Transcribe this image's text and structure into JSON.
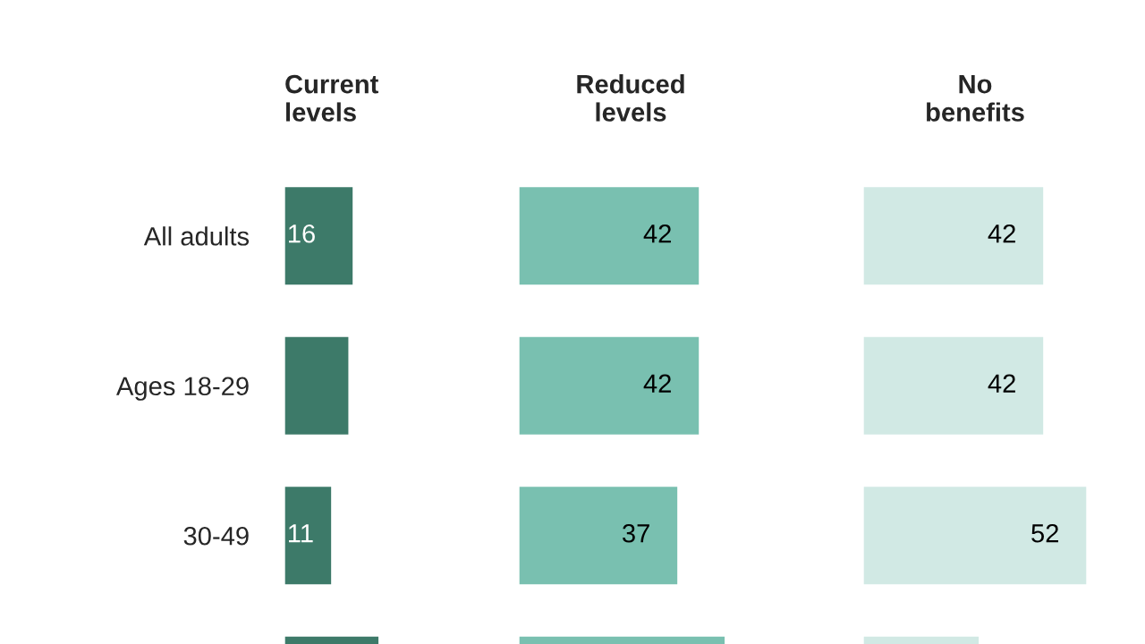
{
  "chart_data": [
    {
      "type": "bar",
      "orientation": "horizontal",
      "title": "Current\nlevels",
      "categories": [
        "All adults",
        "Ages 18-29",
        "30-49",
        null
      ],
      "tick_labels": "y",
      "color": "#3d7a69",
      "values": [
        16,
        15,
        11,
        22
      ],
      "value_labels": [
        "16",
        null,
        "11",
        null
      ]
    },
    {
      "type": "bar",
      "orientation": "horizontal",
      "title": "Reduced\nlevels",
      "tick_labels": false,
      "color": "#79c0b0",
      "values": [
        42,
        42,
        37,
        48
      ],
      "value_labels": [
        "42",
        "42",
        "37",
        null
      ]
    },
    {
      "type": "bar",
      "orientation": "horizontal",
      "title": "No\nbenefits",
      "tick_labels": false,
      "color": "#d1e9e4",
      "values": [
        42,
        42,
        52,
        27
      ],
      "value_labels": [
        "42",
        "42",
        "52",
        null
      ]
    }
  ]
}
